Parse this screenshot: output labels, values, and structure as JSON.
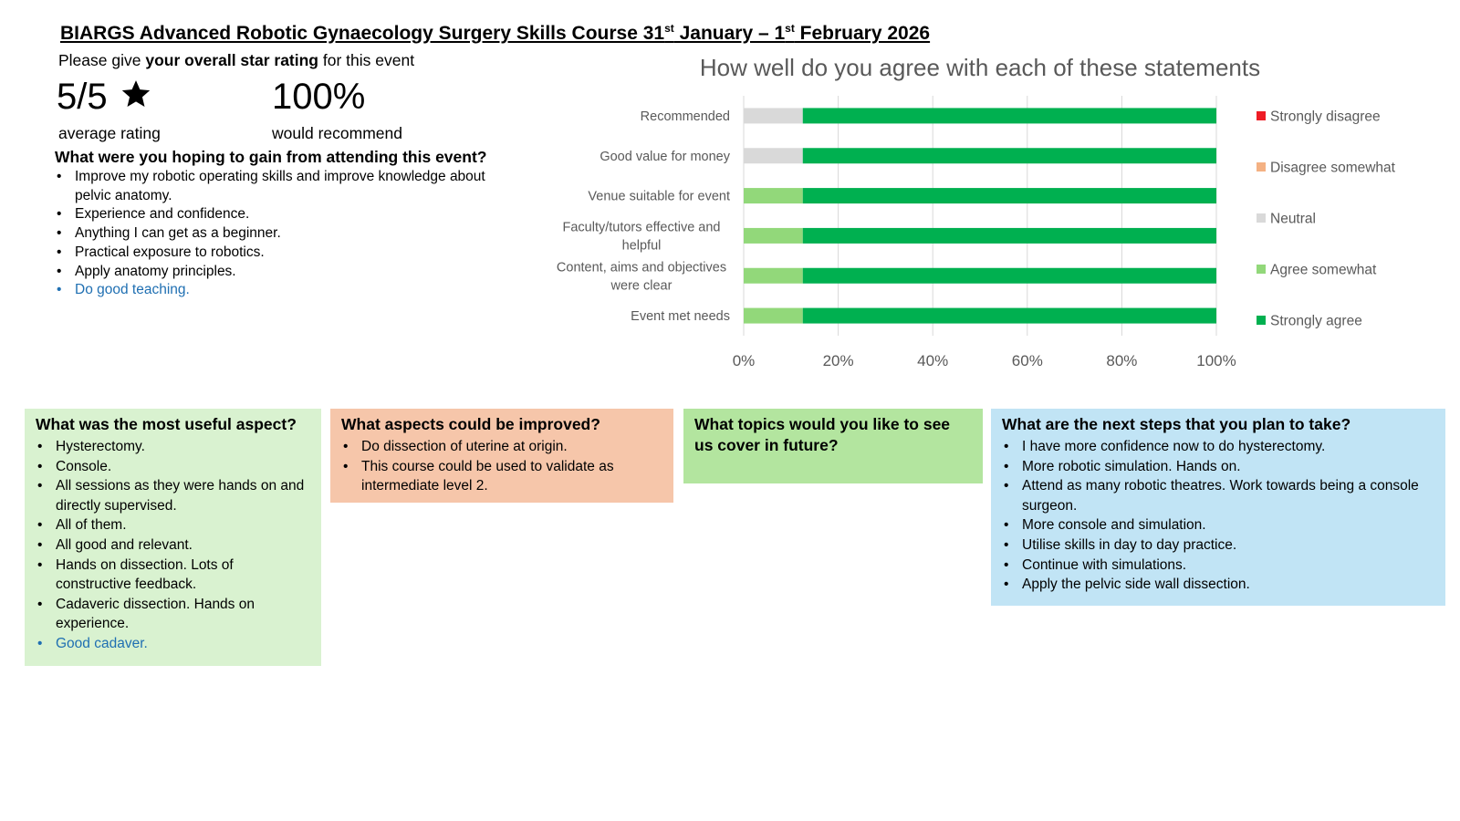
{
  "header": {
    "title_main": "BIARGS Advanced Robotic Gynaecology Surgery Skills Course 31",
    "title_sup1": "st",
    "title_mid": " January – 1",
    "title_sup2": "st",
    "title_end": " February 2026"
  },
  "rating": {
    "prompt_pre": "Please give ",
    "prompt_bold": "your overall star rating",
    "prompt_post": " for this event",
    "average": "5/5",
    "average_label": "average rating",
    "recommend": "100%",
    "recommend_label": "would recommend",
    "icon": "star-icon"
  },
  "hoping": {
    "heading": "What were you hoping to gain from attending this event?",
    "items": [
      "Improve my robotic operating skills and improve knowledge about pelvic anatomy.",
      "Experience and confidence.",
      "Anything I can get as a beginner.",
      "Practical exposure to robotics.",
      "Apply anatomy principles.",
      "Do good teaching."
    ]
  },
  "useful": {
    "heading": "What was the most useful aspect?",
    "color": "#d9f2d0",
    "items": [
      "Hysterectomy.",
      "Console.",
      "All sessions as they were hands on and directly supervised.",
      "All of them.",
      "All good and relevant.",
      "Hands on dissection. Lots of constructive feedback.",
      "Cadaveric dissection. Hands on experience.",
      "Good cadaver."
    ]
  },
  "improved": {
    "heading": "What aspects could be improved?",
    "color": "#f6c6aa",
    "items": [
      "Do dissection of uterine at origin.",
      "This course could be used to validate as intermediate level 2."
    ]
  },
  "topics": {
    "heading": "What topics would you like to see us cover in future?",
    "color": "#b3e59f",
    "items": []
  },
  "next": {
    "heading": "What are the next steps that you plan to take?",
    "color": "#c1e4f5",
    "items": [
      "I have more confidence now to do hysterectomy.",
      "More robotic simulation. Hands on.",
      "Attend as many robotic theatres. Work towards being a console surgeon.",
      "More console and simulation.",
      "Utilise skills in day to day practice.",
      "Continue with simulations.",
      "Apply the pelvic side wall dissection."
    ]
  },
  "chart_data": {
    "type": "bar",
    "orientation": "horizontal",
    "stacked": "100%",
    "title": "How well do you agree with each of these statements",
    "categories": [
      "Recommended",
      "Good value for money",
      "Venue suitable for  event",
      "Faculty/tutors effective and helpful",
      "Content, aims and objectives were clear",
      "Event met needs"
    ],
    "series": [
      {
        "name": "Strongly disagree",
        "color": "#ee1c25",
        "values": [
          0,
          0,
          0,
          0,
          0,
          0
        ]
      },
      {
        "name": "Disagree somewhat",
        "color": "#f4b183",
        "values": [
          0,
          0,
          0,
          0,
          0,
          0
        ]
      },
      {
        "name": "Neutral",
        "color": "#d9d9d9",
        "values": [
          12.5,
          12.5,
          0,
          0,
          0,
          0
        ]
      },
      {
        "name": "Agree somewhat",
        "color": "#92d87a",
        "values": [
          0,
          0,
          12.5,
          12.5,
          12.5,
          12.5
        ]
      },
      {
        "name": "Strongly agree",
        "color": "#00b050",
        "values": [
          87.5,
          87.5,
          87.5,
          87.5,
          87.5,
          87.5
        ]
      }
    ],
    "xlim": [
      0,
      100
    ],
    "xticks": [
      "0%",
      "20%",
      "40%",
      "60%",
      "80%",
      "100%"
    ],
    "grid": true,
    "legend": "right"
  }
}
